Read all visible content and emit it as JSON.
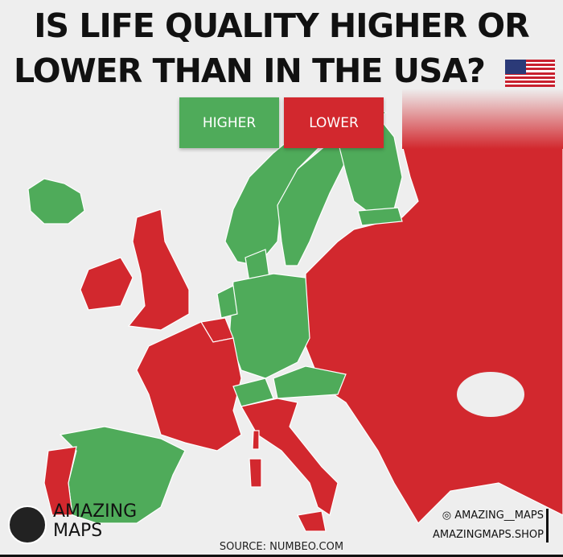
{
  "title": {
    "line1": "IS LIFE QUALITY HIGHER OR",
    "line2": "LOWER THAN IN THE USA?"
  },
  "legend": {
    "higher": "HIGHER",
    "lower": "LOWER"
  },
  "colors": {
    "higher": "#4fab5a",
    "lower": "#d2282e",
    "background": "#eeeeee"
  },
  "icons": {
    "flag": "usa-flag-icon",
    "logo": "amazing-maps-globe-logo",
    "social": "instagram-icon"
  },
  "brand": {
    "line1": "AMAZING",
    "line2": "MAPS"
  },
  "source": "SOURCE: NUMBEO.COM",
  "social": {
    "instagram": "AMAZING__MAPS",
    "shop": "AMAZINGMAPS.SHOP"
  },
  "regions": {
    "higher": [
      "Iceland",
      "Norway",
      "Sweden",
      "Finland",
      "Estonia",
      "Denmark",
      "Netherlands",
      "Germany",
      "Switzerland",
      "Austria",
      "Spain"
    ],
    "lower": [
      "Ireland",
      "United Kingdom",
      "France",
      "Belgium",
      "Portugal",
      "Italy",
      "Poland",
      "Czechia",
      "Eastern Europe",
      "Balkans",
      "Greece",
      "Turkey",
      "Russia"
    ]
  }
}
